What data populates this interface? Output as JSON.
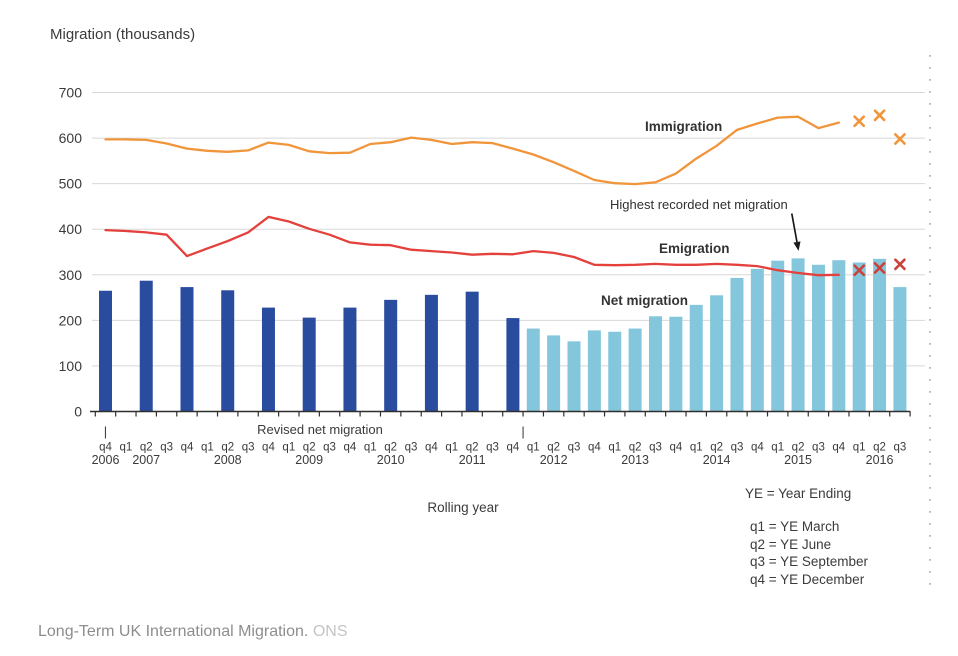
{
  "header": {
    "title": "Migration (thousands)"
  },
  "axis_labels": {
    "rolling_year": "Rolling year"
  },
  "legend": {
    "ye_definition": "YE = Year Ending",
    "items": [
      "q1 = YE March",
      "q2 = YE June",
      "q3 = YE September",
      "q4 = YE December"
    ]
  },
  "footer": {
    "source": "Long-Term UK International Migration.",
    "org": "ONS"
  },
  "chart_data": {
    "type": "combo-bar-line",
    "title": "Migration (thousands)",
    "xlabel": "Rolling year",
    "grid": true,
    "y_axis": {
      "min": 0,
      "max": 700,
      "tick_step": 100,
      "ticks": [
        700,
        600,
        500,
        400,
        300,
        200,
        100,
        0
      ]
    },
    "x_axis": {
      "quarters": [
        "q4",
        "q1",
        "q2",
        "q3",
        "q4",
        "q1",
        "q2",
        "q3",
        "q4",
        "q1",
        "q2",
        "q3",
        "q4",
        "q1",
        "q2",
        "q3",
        "q4",
        "q1",
        "q2",
        "q3",
        "q4",
        "q1",
        "q2",
        "q3",
        "q4",
        "q1",
        "q2",
        "q3",
        "q4",
        "q1",
        "q2",
        "q3",
        "q4",
        "q1",
        "q2",
        "q3",
        "q4",
        "q1",
        "q2",
        "q3"
      ],
      "years": [
        {
          "label": "2006",
          "index": 0
        },
        {
          "label": "2007",
          "index": 2
        },
        {
          "label": "2008",
          "index": 6
        },
        {
          "label": "2009",
          "index": 10
        },
        {
          "label": "2010",
          "index": 14
        },
        {
          "label": "2011",
          "index": 18
        },
        {
          "label": "2012",
          "index": 22
        },
        {
          "label": "2013",
          "index": 26
        },
        {
          "label": "2014",
          "index": 30
        },
        {
          "label": "2015",
          "index": 34
        },
        {
          "label": "2016",
          "index": 38
        }
      ],
      "separator_glyph": "|",
      "revised_section_label": "Revised net migration"
    },
    "series": [
      {
        "name": "Immigration",
        "type": "line",
        "color": "#F1953B",
        "start_index": 0,
        "values": [
          597,
          597,
          596,
          588,
          577,
          572,
          570,
          573,
          590,
          585,
          571,
          567,
          568,
          587,
          591,
          601,
          596,
          587,
          591,
          589,
          577,
          564,
          547,
          528,
          508,
          501,
          499,
          503,
          522,
          555,
          583,
          618,
          632,
          645,
          647,
          622,
          634
        ]
      },
      {
        "name": "Emigration",
        "type": "line",
        "color": "#E4403C",
        "start_index": 0,
        "values": [
          398,
          396,
          393,
          388,
          341,
          358,
          374,
          393,
          427,
          417,
          401,
          388,
          371,
          366,
          365,
          355,
          352,
          349,
          344,
          346,
          345,
          352,
          348,
          339,
          322,
          321,
          322,
          324,
          322,
          322,
          324,
          322,
          319,
          310,
          304,
          299,
          300
        ]
      },
      {
        "name": "Revised net migration",
        "type": "bar",
        "color": "#2A4C9F",
        "indices": [
          0,
          2,
          4,
          6,
          8,
          10,
          12,
          14,
          16,
          18,
          20
        ],
        "values": [
          265,
          287,
          273,
          266,
          228,
          206,
          228,
          245,
          256,
          263,
          205
        ]
      },
      {
        "name": "Net migration",
        "type": "bar",
        "color": "#84C7DC",
        "indices": [
          21,
          22,
          23,
          24,
          25,
          26,
          27,
          28,
          29,
          30,
          31,
          32,
          33,
          34,
          35,
          36,
          37,
          38,
          39
        ],
        "values": [
          182,
          167,
          154,
          178,
          175,
          182,
          209,
          208,
          234,
          255,
          293,
          313,
          331,
          336,
          322,
          332,
          327,
          335,
          273
        ]
      },
      {
        "name": "Immigration provisional",
        "type": "x_marker",
        "color": "#F1953B",
        "start_index": 37,
        "values": [
          637,
          650,
          598
        ]
      },
      {
        "name": "Emigration provisional",
        "type": "x_marker",
        "color": "#C9423C",
        "start_index": 37,
        "values": [
          310,
          315,
          323
        ]
      }
    ],
    "series_labels": {
      "immigration": "Immigration",
      "emigration": "Emigration",
      "net": "Net migration"
    },
    "annotation": {
      "text": "Highest recorded net migration",
      "target_index": 34,
      "target_value": 336
    }
  }
}
